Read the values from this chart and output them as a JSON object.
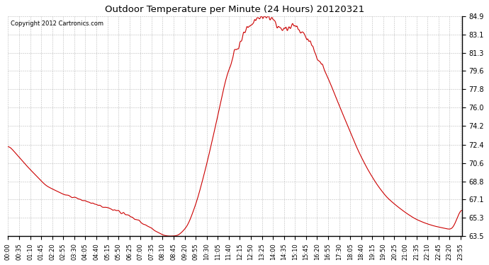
{
  "title": "Outdoor Temperature per Minute (24 Hours) 20120321",
  "copyright_text": "Copyright 2012 Cartronics.com",
  "line_color": "#cc0000",
  "background_color": "#ffffff",
  "plot_bg_color": "#ffffff",
  "grid_color": "#aaaaaa",
  "yticks": [
    63.5,
    65.3,
    67.1,
    68.8,
    70.6,
    72.4,
    74.2,
    76.0,
    77.8,
    79.6,
    81.3,
    83.1,
    84.9
  ],
  "ymin": 63.5,
  "ymax": 84.9,
  "xtick_labels": [
    "00:00",
    "00:35",
    "01:10",
    "01:45",
    "02:20",
    "02:55",
    "03:30",
    "04:05",
    "04:40",
    "05:15",
    "05:50",
    "06:25",
    "07:00",
    "07:35",
    "08:10",
    "08:45",
    "09:20",
    "09:55",
    "10:30",
    "11:05",
    "11:40",
    "12:15",
    "12:50",
    "13:25",
    "14:00",
    "14:35",
    "15:10",
    "15:45",
    "16:20",
    "16:55",
    "17:30",
    "18:05",
    "18:40",
    "19:15",
    "19:50",
    "20:25",
    "21:00",
    "21:35",
    "22:10",
    "22:45",
    "23:20",
    "23:55"
  ],
  "key_minutes": [
    0,
    60,
    120,
    180,
    210,
    240,
    270,
    300,
    330,
    360,
    390,
    420,
    450,
    460,
    475,
    490,
    510,
    540,
    570,
    600,
    630,
    660,
    690,
    720,
    750,
    780,
    810,
    840,
    855,
    870,
    885,
    900,
    915,
    930,
    960,
    990,
    1020,
    1050,
    1080,
    1110,
    1140,
    1170,
    1200,
    1230,
    1260,
    1290,
    1320,
    1350,
    1380,
    1410,
    1439
  ],
  "key_temps": [
    72.4,
    70.3,
    68.4,
    67.5,
    67.3,
    67.0,
    66.7,
    66.4,
    66.1,
    65.8,
    65.4,
    64.9,
    64.3,
    64.1,
    63.9,
    63.6,
    63.5,
    63.55,
    64.5,
    67.0,
    70.5,
    74.5,
    78.8,
    81.5,
    83.2,
    84.5,
    84.9,
    84.6,
    83.8,
    83.5,
    83.7,
    84.1,
    83.9,
    83.5,
    82.2,
    80.5,
    78.5,
    76.2,
    74.0,
    71.8,
    70.0,
    68.5,
    67.3,
    66.5,
    65.8,
    65.2,
    64.8,
    64.5,
    64.3,
    64.1,
    66.5
  ]
}
